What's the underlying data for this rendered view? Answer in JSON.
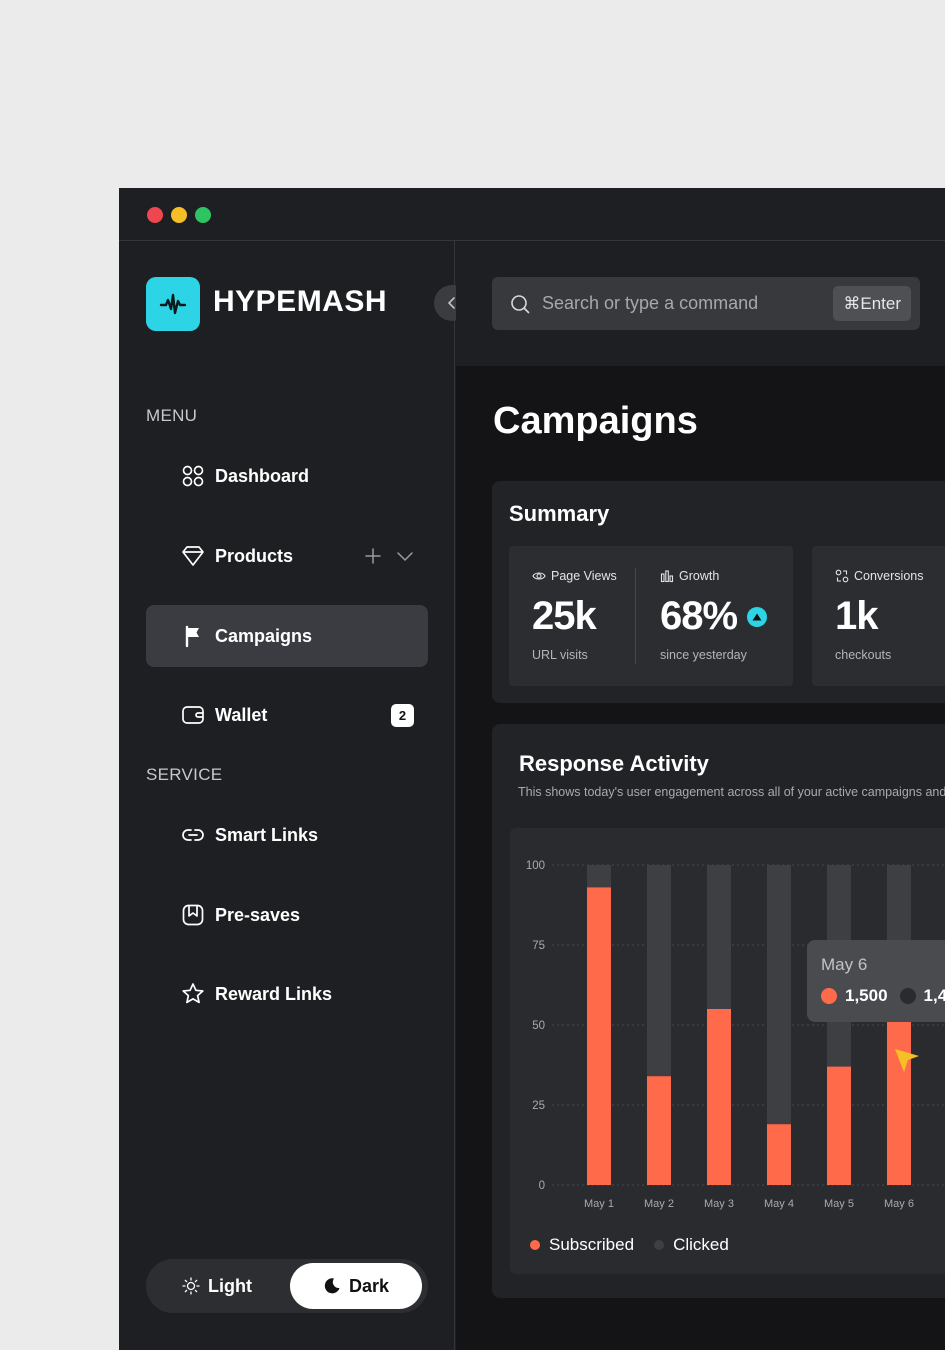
{
  "window": {
    "traffic_lights": [
      {
        "name": "close",
        "color": "#f0464f"
      },
      {
        "name": "minimize",
        "color": "#f5bf25"
      },
      {
        "name": "maximize",
        "color": "#2ec461"
      }
    ]
  },
  "colors": {
    "accent": "#2dd4e6",
    "subscribed": "#ff6b4a",
    "clicked": "#3e3f43",
    "sidebar_bg": "#1e1f22",
    "main_bg": "#141416"
  },
  "brand": {
    "name": "HYPEMASH",
    "logo_icon": "waveform-icon"
  },
  "search": {
    "placeholder": "Search or type a command",
    "shortcut": "⌘Enter",
    "icon": "search-icon"
  },
  "sidebar": {
    "menu_label": "MENU",
    "menu_items": [
      {
        "label": "Dashboard",
        "icon": "grid-icon"
      },
      {
        "label": "Products",
        "icon": "gem-icon"
      },
      {
        "label": "Campaigns",
        "icon": "flag-icon",
        "active": true
      },
      {
        "label": "Wallet",
        "icon": "wallet-icon",
        "badge": "2"
      }
    ],
    "service_label": "SERVICE",
    "service_items": [
      {
        "label": "Smart Links",
        "icon": "link-icon"
      },
      {
        "label": "Pre-saves",
        "icon": "bookmark-icon"
      },
      {
        "label": "Reward Links",
        "icon": "star-icon"
      }
    ]
  },
  "theme": {
    "light_label": "Light",
    "dark_label": "Dark",
    "selected": "Dark"
  },
  "page": {
    "title": "Campaigns"
  },
  "summary": {
    "title": "Summary",
    "stats": [
      {
        "label": "Page Views",
        "value": "25k",
        "sub": "URL visits",
        "icon": "eye-icon"
      },
      {
        "label": "Growth",
        "value": "68%",
        "sub": "since yesterday",
        "icon": "bar-chart-icon"
      },
      {
        "label": "Conversions",
        "value": "1k",
        "sub": "checkouts",
        "icon": "conversions-icon"
      }
    ]
  },
  "activity": {
    "title": "Response Activity",
    "description": "This shows today's user engagement across all of your active campaigns and",
    "tooltip": {
      "date": "May 6",
      "subscribed_value": "1,500",
      "clicked_value": "1,4"
    }
  },
  "chart_data": {
    "type": "bar",
    "stacked": true,
    "categories": [
      "May 1",
      "May 2",
      "May 3",
      "May 4",
      "May 5",
      "May 6"
    ],
    "series": [
      {
        "name": "Subscribed",
        "values": [
          93,
          34,
          55,
          19,
          37,
          52
        ]
      },
      {
        "name": "Clicked",
        "values": [
          7,
          66,
          45,
          81,
          63,
          48
        ]
      }
    ],
    "yticks": [
      0,
      25,
      50,
      75,
      100
    ],
    "ylim": [
      0,
      100
    ],
    "grid": true,
    "legend_position": "bottom-left"
  }
}
